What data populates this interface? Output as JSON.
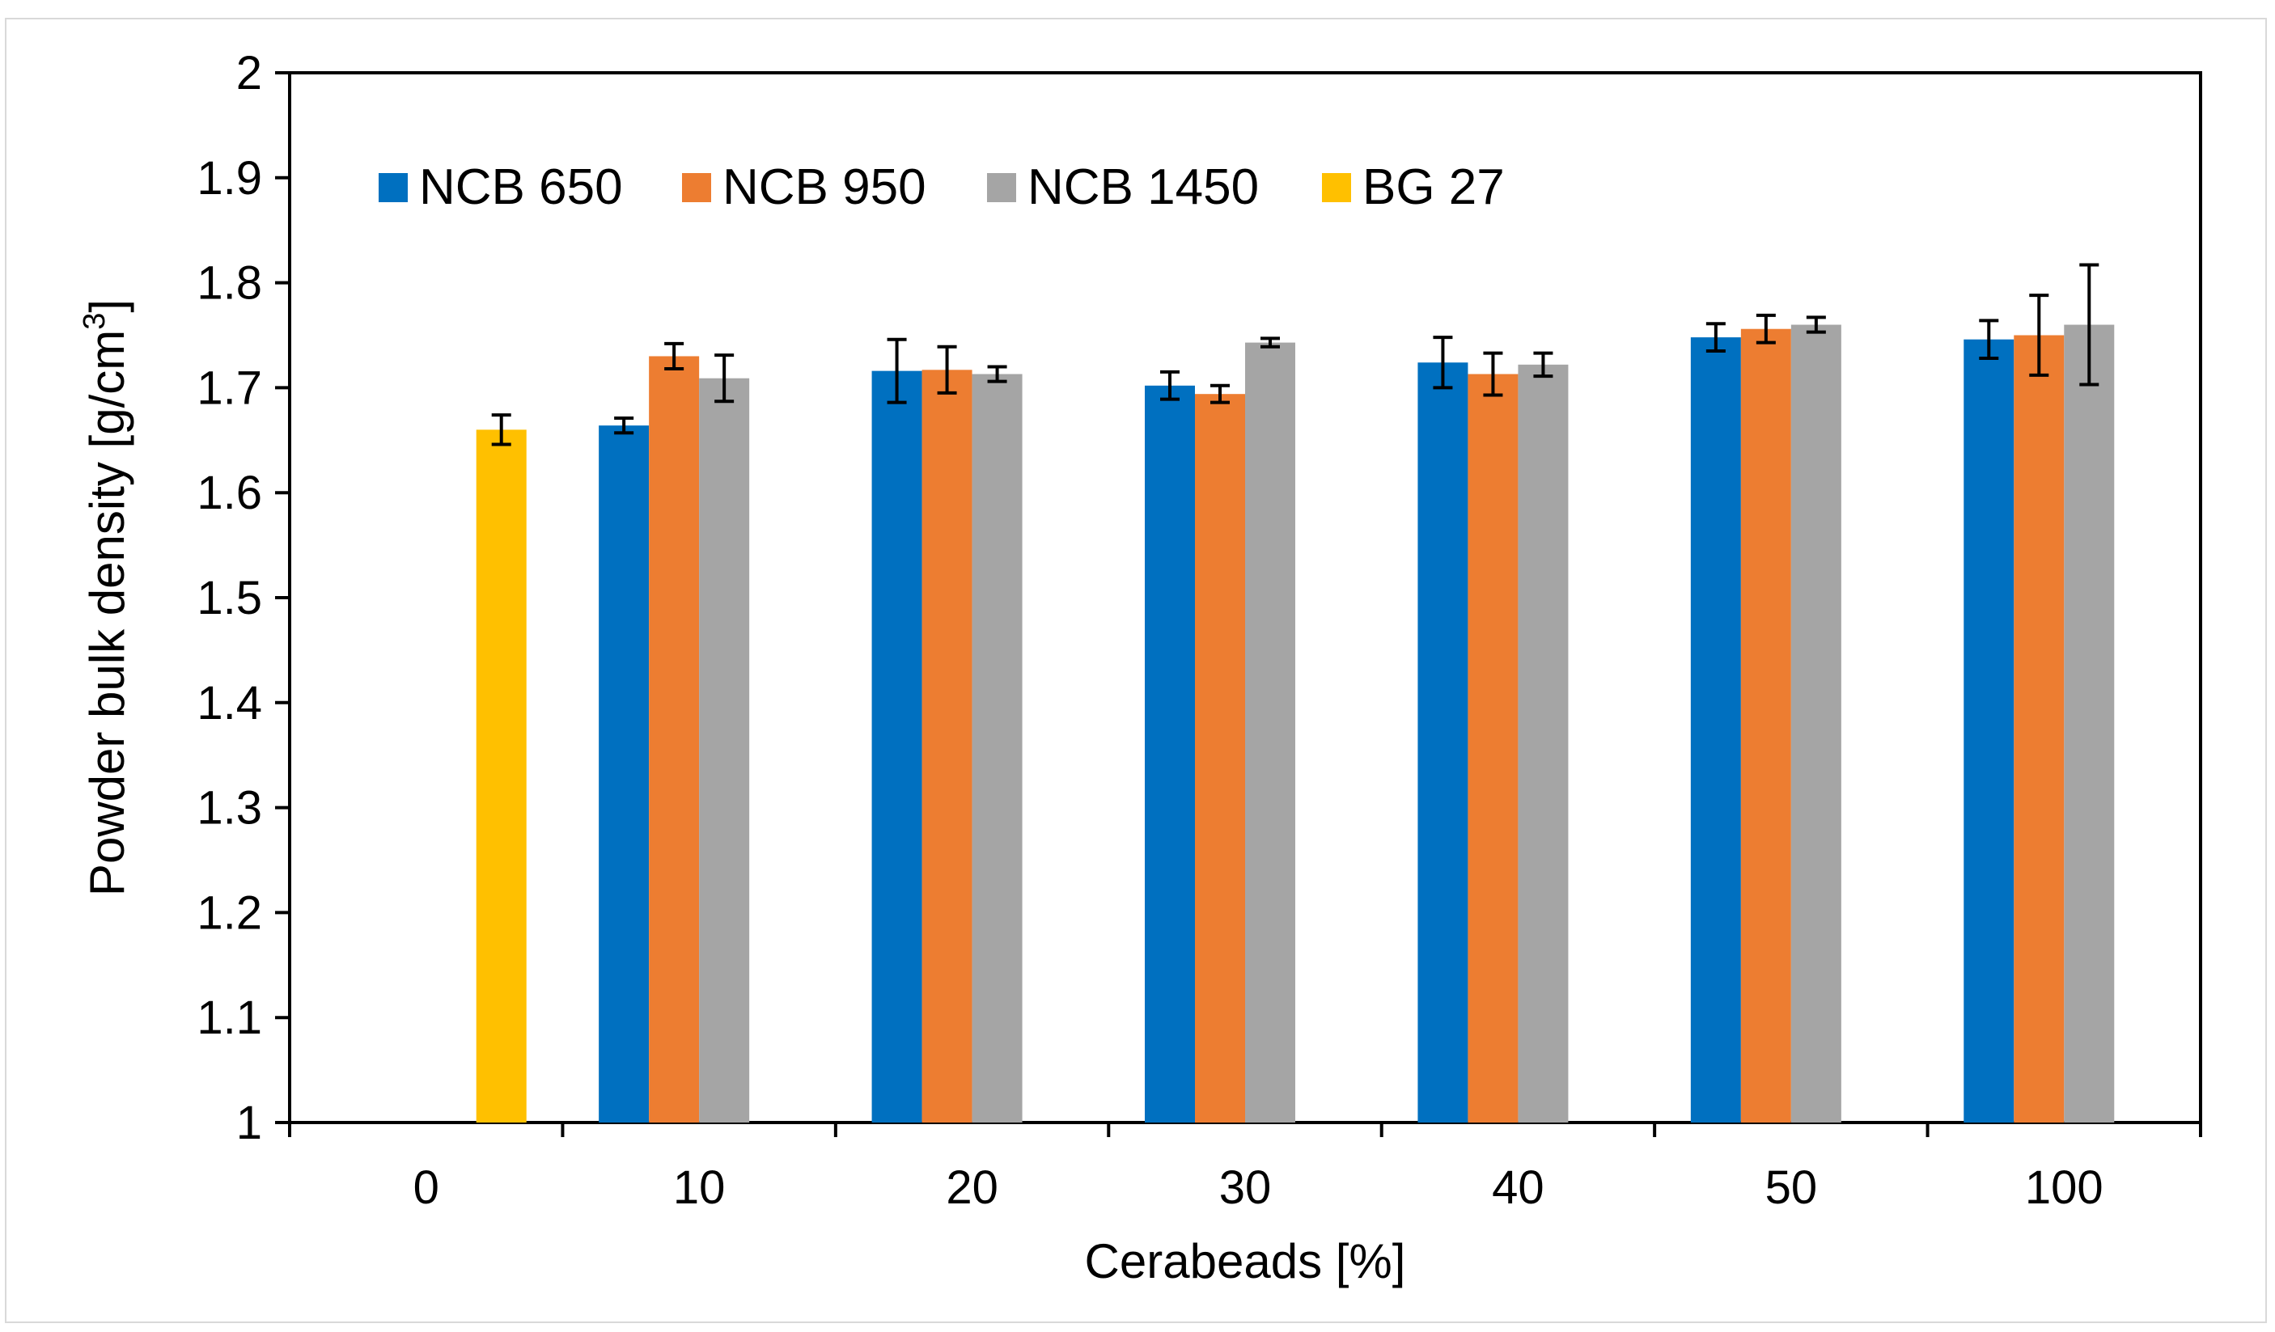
{
  "chart_data": {
    "type": "bar",
    "title": "",
    "xlabel": "Cerabeads [%]",
    "ylabel_main": "Powder bulk density [g/cm",
    "ylabel_sup": "3",
    "ylabel_end": "]",
    "ylim": [
      1,
      2
    ],
    "yticks": [
      "1",
      "1.1",
      "1.2",
      "1.3",
      "1.4",
      "1.5",
      "1.6",
      "1.7",
      "1.8",
      "1.9",
      "2"
    ],
    "categories": [
      "0",
      "10",
      "20",
      "30",
      "40",
      "50",
      "100"
    ],
    "legend_position": "top-left",
    "series": [
      {
        "name": "NCB 650",
        "color": "#0070c0",
        "values": [
          null,
          1.664,
          1.716,
          1.702,
          1.724,
          1.748,
          1.746
        ],
        "errors": [
          null,
          0.007,
          0.03,
          0.013,
          0.024,
          0.013,
          0.018
        ]
      },
      {
        "name": "NCB 950",
        "color": "#ed7d31",
        "values": [
          null,
          1.73,
          1.717,
          1.694,
          1.713,
          1.756,
          1.75
        ],
        "errors": [
          null,
          0.012,
          0.022,
          0.008,
          0.02,
          0.013,
          0.038
        ]
      },
      {
        "name": "NCB 1450",
        "color": "#a5a5a5",
        "values": [
          null,
          1.709,
          1.713,
          1.743,
          1.722,
          1.76,
          1.76
        ],
        "errors": [
          null,
          0.022,
          0.007,
          0.004,
          0.011,
          0.007,
          0.057
        ]
      },
      {
        "name": "BG 27",
        "color": "#ffc000",
        "values": [
          1.66,
          null,
          null,
          null,
          null,
          null,
          null
        ],
        "errors": [
          0.014,
          null,
          null,
          null,
          null,
          null,
          null
        ]
      }
    ]
  }
}
